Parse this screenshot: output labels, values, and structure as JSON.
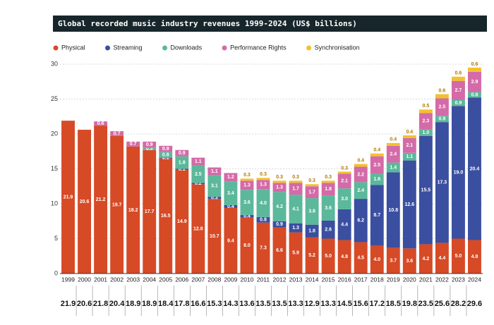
{
  "chart_data": {
    "type": "stacked_bar",
    "title": "Global recorded music industry revenues 1999-2024 (US$ billions)",
    "categories": [
      "1999",
      "2000",
      "2001",
      "2002",
      "2003",
      "2004",
      "2005",
      "2006",
      "2007",
      "2008",
      "2009",
      "2010",
      "2011",
      "2012",
      "2013",
      "2014",
      "2015",
      "2016",
      "2017",
      "2018",
      "2019",
      "2020",
      "2021",
      "2022",
      "2023",
      "2024"
    ],
    "ylim": [
      0,
      30
    ],
    "yticks": [
      0,
      5,
      10,
      15,
      20,
      25,
      30
    ],
    "grid": true,
    "series": [
      {
        "name": "Physical",
        "color": "#d64a26",
        "values": [
          21.9,
          20.6,
          21.2,
          19.7,
          18.2,
          17.7,
          16.5,
          14.9,
          12.8,
          10.7,
          9.4,
          8.0,
          7.3,
          6.6,
          5.9,
          5.2,
          5.0,
          4.8,
          4.5,
          4.0,
          3.7,
          3.6,
          4.2,
          4.4,
          5.0,
          4.8
        ],
        "value_labels": [
          "21.9",
          "20.6",
          "21.2",
          "19.7",
          "18.2",
          "17.7",
          "16.5",
          "14.9",
          "12.8",
          "10.7",
          "9.4",
          "8.0",
          "7.3",
          "6.6",
          "5.9",
          "5.2",
          "5.0",
          "4.8",
          "4.5",
          "4.0",
          "3.7",
          "3.6",
          "4.2",
          "4.4",
          "5.0",
          "4.8"
        ]
      },
      {
        "name": "Streaming",
        "color": "#3a4fa0",
        "values": [
          null,
          null,
          null,
          null,
          null,
          null,
          0.1,
          0.1,
          0.2,
          0.3,
          0.4,
          0.4,
          0.8,
          0.9,
          1.3,
          1.8,
          2.6,
          4.4,
          6.2,
          8.7,
          10.8,
          12.6,
          15.5,
          17.3,
          19.0,
          20.4
        ],
        "value_labels": [
          null,
          null,
          null,
          null,
          null,
          null,
          "0.1",
          "0.1",
          "0.2",
          "0.3",
          "0.4",
          "0.4",
          "0.8",
          "0.9",
          "1.3",
          "1.8",
          "2.6",
          "4.4",
          "6.2",
          "8.7",
          "10.8",
          "12.6",
          "15.5",
          "17.3",
          "19.0",
          "20.4"
        ]
      },
      {
        "name": "Downloads",
        "color": "#5cb89a",
        "values": [
          null,
          null,
          null,
          null,
          null,
          0.3,
          0.8,
          1.8,
          2.5,
          3.1,
          3.4,
          3.6,
          4.0,
          4.2,
          4.1,
          3.8,
          3.6,
          3.0,
          2.4,
          1.6,
          1.4,
          1.1,
          1.0,
          0.9,
          0.9,
          0.8
        ],
        "value_labels": [
          null,
          null,
          null,
          null,
          null,
          "0.3",
          "0.8",
          "1.8",
          "2.5",
          "3.1",
          "3.4",
          "3.6",
          "4.0",
          "4.2",
          "4.1",
          "3.8",
          "3.6",
          "3.0",
          "2.4",
          "1.6",
          "1.4",
          "1.1",
          "1.0",
          "0.9",
          "0.9",
          "0.8"
        ]
      },
      {
        "name": "Performance Rights",
        "color": "#d46aa8",
        "values": [
          null,
          null,
          0.6,
          0.7,
          0.7,
          0.9,
          0.9,
          0.9,
          1.1,
          1.1,
          1.2,
          1.3,
          1.3,
          1.3,
          1.7,
          1.7,
          1.8,
          2.1,
          2.2,
          2.5,
          2.4,
          2.1,
          2.3,
          2.5,
          2.7,
          2.9
        ]
      },
      {
        "name": "Synchronisation",
        "color": "#f2c12e",
        "values": [
          null,
          null,
          null,
          null,
          null,
          null,
          null,
          null,
          null,
          null,
          null,
          0.3,
          0.3,
          0.3,
          0.3,
          0.3,
          0.3,
          0.3,
          0.4,
          0.4,
          0.4,
          0.4,
          0.5,
          0.6,
          0.6,
          0.6
        ]
      }
    ],
    "totals": [
      21.9,
      20.6,
      21.8,
      20.4,
      18.9,
      18.9,
      18.4,
      17.8,
      16.6,
      15.3,
      14.3,
      13.6,
      13.5,
      13.5,
      13.3,
      12.9,
      13.3,
      14.5,
      15.6,
      17.2,
      18.5,
      19.8,
      23.5,
      25.6,
      28.2,
      29.6
    ]
  }
}
